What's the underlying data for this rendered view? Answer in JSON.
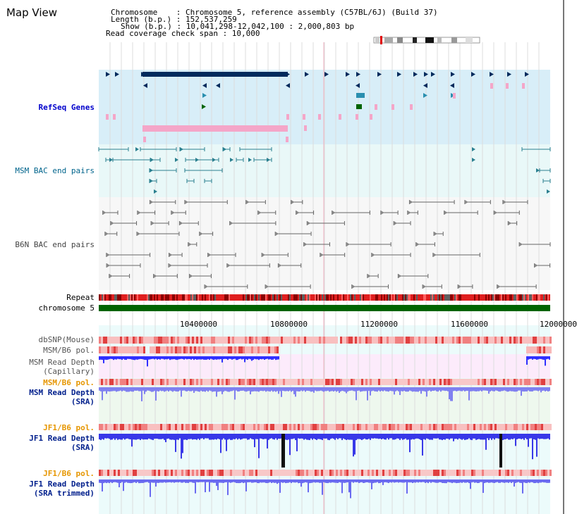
{
  "header": {
    "title": "Map View",
    "chromosome_line": "Chromosome    : Chromosome 5, reference assembly (C57BL/6J) (Build 37)",
    "length_line": "Length (b.p.) : 152,537,259",
    "show_line": "Show (b.p.) : 10,041,298-12,042,100 : 2,000,803 bp",
    "coverage_line": "Read coverage check span : 10,000"
  },
  "tracks": {
    "refseq": "RefSeq Genes",
    "msm_bac": "MSM BAC end pairs",
    "b6n_bac": "B6N BAC end pairs",
    "repeat": "Repeat",
    "chrom": "chromosome 5",
    "dbsnp": "dbSNP(Mouse)",
    "msm_b6_pol_1": "MSM/B6 pol.",
    "msm_depth_cap_1": "MSM Read Depth",
    "msm_depth_cap_2": "(Capillary)",
    "msm_b6_pol_2": "MSM/B6 pol.",
    "msm_depth_sra_1": "MSM Read Depth",
    "msm_depth_sra_2": "(SRA)",
    "jf1_b6_pol_1": "JF1/B6 pol.",
    "jf1_depth_sra_1": "JF1 Read Depth",
    "jf1_depth_sra_2": "(SRA)",
    "jf1_b6_pol_2": "JF1/B6 pol.",
    "jf1_depth_trim_1": "JF1 Read Depth",
    "jf1_depth_trim_2": "(SRA trimmed)"
  },
  "axis": {
    "ticks": [
      "10400000",
      "10800000",
      "11200000",
      "11600000",
      "12000000"
    ]
  },
  "colors": {
    "refseq_bg": "#d8eef8",
    "bac_bg": "#e9f8f8",
    "gene_dark": "#002a5c",
    "gene_pink": "#f4a6c8",
    "msm_bac": "#2a7f8f",
    "chrom": "#006400",
    "depth_blue": "#3030ff"
  }
}
